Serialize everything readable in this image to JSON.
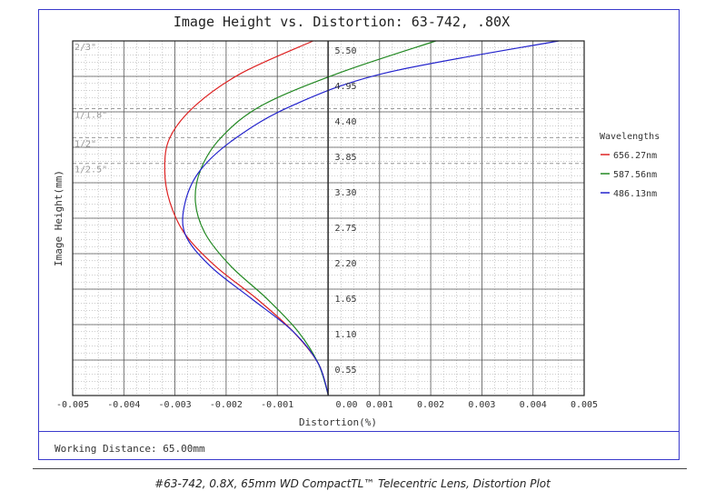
{
  "chart_data": {
    "type": "line",
    "title": "Image Height vs. Distortion: 63-742, .80X",
    "xlabel": "Distortion(%)",
    "ylabel": "Image Height(mm)",
    "xlim": [
      -0.005,
      0.005
    ],
    "ylim": [
      0,
      5.5
    ],
    "x_ticks": [
      "-0.005",
      "-0.004",
      "-0.003",
      "-0.002",
      "-0.001",
      "0.00",
      "0.001",
      "0.002",
      "0.003",
      "0.004",
      "0.005"
    ],
    "y_ticks": [
      "0.55",
      "1.10",
      "1.65",
      "2.20",
      "2.75",
      "3.30",
      "3.85",
      "4.40",
      "4.95",
      "5.50"
    ],
    "grid": true,
    "legend_title": "Wavelengths",
    "legend_position": "right",
    "series": [
      {
        "name": "656.27nm",
        "color": "#dd2222",
        "x": [
          0,
          -0.0002,
          -0.0007,
          -0.0014,
          -0.0022,
          -0.0028,
          -0.0031,
          -0.0032,
          -0.0031,
          -0.0026,
          -0.0017,
          -0.0003,
          -0.0003
        ],
        "y": [
          0,
          0.5,
          1.0,
          1.5,
          2.0,
          2.5,
          3.0,
          3.5,
          4.0,
          4.5,
          5.0,
          5.5,
          5.5
        ]
      },
      {
        "name": "587.56nm",
        "color": "#228822",
        "x": [
          0,
          -0.0002,
          -0.0006,
          -0.0012,
          -0.0019,
          -0.0024,
          -0.0026,
          -0.0025,
          -0.0021,
          -0.0013,
          0.0002,
          0.0021
        ],
        "y": [
          0,
          0.5,
          1.0,
          1.5,
          2.0,
          2.5,
          3.0,
          3.5,
          4.0,
          4.5,
          5.0,
          5.5
        ]
      },
      {
        "name": "486.13nm",
        "color": "#2222cc",
        "x": [
          0,
          -0.0002,
          -0.0007,
          -0.0015,
          -0.0023,
          -0.0028,
          -0.0028,
          -0.0025,
          -0.0018,
          -0.0007,
          0.0011,
          0.0045
        ],
        "y": [
          0,
          0.5,
          1.0,
          1.5,
          2.0,
          2.5,
          3.0,
          3.5,
          4.0,
          4.5,
          5.0,
          5.5
        ]
      }
    ],
    "annotations": [
      {
        "label": "2/3\"",
        "y": 5.5
      },
      {
        "label": "1/1.8\"",
        "y": 4.45
      },
      {
        "label": "1/2\"",
        "y": 4.0
      },
      {
        "label": "1/2.5\"",
        "y": 3.6
      }
    ]
  },
  "footer": {
    "working_distance": "Working Distance: 65.00mm",
    "caption": "#63-742, 0.8X, 65mm WD CompactTL™ Telecentric Lens, Distortion Plot"
  }
}
